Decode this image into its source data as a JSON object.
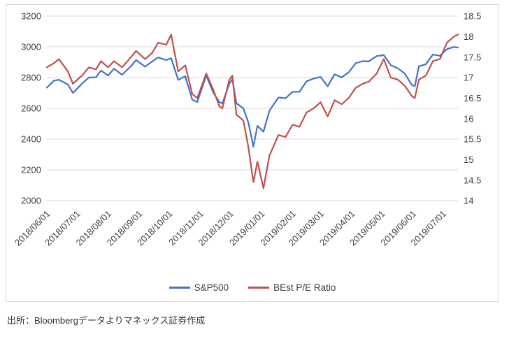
{
  "source_note": "出所：Bloombergデータよりマネックス証券作成",
  "chart_data": {
    "type": "line",
    "title": "",
    "grid": true,
    "legend_position": "bottom",
    "styles": {
      "grid_color": "#d9d9d9",
      "axis_text_color": "#404040",
      "border_color": "#d9d9d9",
      "background": "#ffffff"
    },
    "left_axis": {
      "min": 2000,
      "max": 3200,
      "step": 200,
      "tick_labels": [
        "2000",
        "2200",
        "2400",
        "2600",
        "2800",
        "3000",
        "3200"
      ]
    },
    "right_axis": {
      "min": 14,
      "max": 18.5,
      "step": 0.5,
      "tick_labels": [
        "14",
        "14.5",
        "15",
        "15.5",
        "16",
        "16.5",
        "17",
        "17.5",
        "18",
        "18.5"
      ]
    },
    "x_tick_labels": [
      "2018/06/01",
      "2018/07/01",
      "2018/08/01",
      "2018/09/01",
      "2018/10/01",
      "2018/11/01",
      "2018/12/01",
      "2019/01/01",
      "2019/02/01",
      "2019/03/01",
      "2019/04/01",
      "2019/05/01",
      "2019/06/01",
      "2019/07/01"
    ],
    "dates": [
      "2018-06-01",
      "2018-06-08",
      "2018-06-13",
      "2018-06-22",
      "2018-06-27",
      "2018-07-06",
      "2018-07-13",
      "2018-07-20",
      "2018-07-25",
      "2018-08-01",
      "2018-08-07",
      "2018-08-15",
      "2018-08-24",
      "2018-08-29",
      "2018-09-07",
      "2018-09-14",
      "2018-09-20",
      "2018-09-28",
      "2018-10-03",
      "2018-10-10",
      "2018-10-17",
      "2018-10-24",
      "2018-10-29",
      "2018-11-07",
      "2018-11-14",
      "2018-11-20",
      "2018-11-23",
      "2018-11-30",
      "2018-12-03",
      "2018-12-07",
      "2018-12-14",
      "2018-12-19",
      "2018-12-24",
      "2018-12-28",
      "2019-01-03",
      "2019-01-09",
      "2019-01-18",
      "2019-01-25",
      "2019-02-01",
      "2019-02-08",
      "2019-02-15",
      "2019-02-22",
      "2019-03-01",
      "2019-03-08",
      "2019-03-15",
      "2019-03-22",
      "2019-03-29",
      "2019-04-05",
      "2019-04-12",
      "2019-04-18",
      "2019-04-26",
      "2019-05-03",
      "2019-05-10",
      "2019-05-17",
      "2019-05-24",
      "2019-05-31",
      "2019-06-03",
      "2019-06-07",
      "2019-06-14",
      "2019-06-21",
      "2019-06-28",
      "2019-07-05",
      "2019-07-12",
      "2019-07-16"
    ],
    "series": [
      {
        "name": "S&P500",
        "axis": "left",
        "color": "#4472c4",
        "values": [
          2735,
          2779,
          2786,
          2755,
          2700,
          2760,
          2801,
          2802,
          2846,
          2813,
          2858,
          2818,
          2875,
          2914,
          2871,
          2905,
          2931,
          2914,
          2926,
          2785,
          2809,
          2656,
          2641,
          2814,
          2702,
          2642,
          2632,
          2760,
          2790,
          2633,
          2600,
          2507,
          2351,
          2486,
          2448,
          2585,
          2671,
          2665,
          2707,
          2708,
          2776,
          2793,
          2804,
          2743,
          2822,
          2801,
          2834,
          2893,
          2907,
          2905,
          2940,
          2946,
          2881,
          2860,
          2826,
          2752,
          2744,
          2873,
          2887,
          2950,
          2942,
          2985,
          2999,
          2995
        ]
      },
      {
        "name": "BEst P/E Ratio",
        "axis": "right",
        "color": "#c0504d",
        "values": [
          17.25,
          17.35,
          17.45,
          17.15,
          16.85,
          17.05,
          17.25,
          17.2,
          17.4,
          17.25,
          17.4,
          17.25,
          17.5,
          17.65,
          17.45,
          17.6,
          17.85,
          17.8,
          18.05,
          17.15,
          17.3,
          16.6,
          16.5,
          17.1,
          16.7,
          16.3,
          16.25,
          16.95,
          17.05,
          16.1,
          15.95,
          15.3,
          14.45,
          14.95,
          14.3,
          15.1,
          15.6,
          15.55,
          15.85,
          15.8,
          16.15,
          16.25,
          16.4,
          16.05,
          16.45,
          16.35,
          16.5,
          16.75,
          16.85,
          16.9,
          17.1,
          17.45,
          17.0,
          16.95,
          16.8,
          16.55,
          16.5,
          16.95,
          17.05,
          17.4,
          17.45,
          17.85,
          18.0,
          18.05
        ]
      }
    ]
  }
}
